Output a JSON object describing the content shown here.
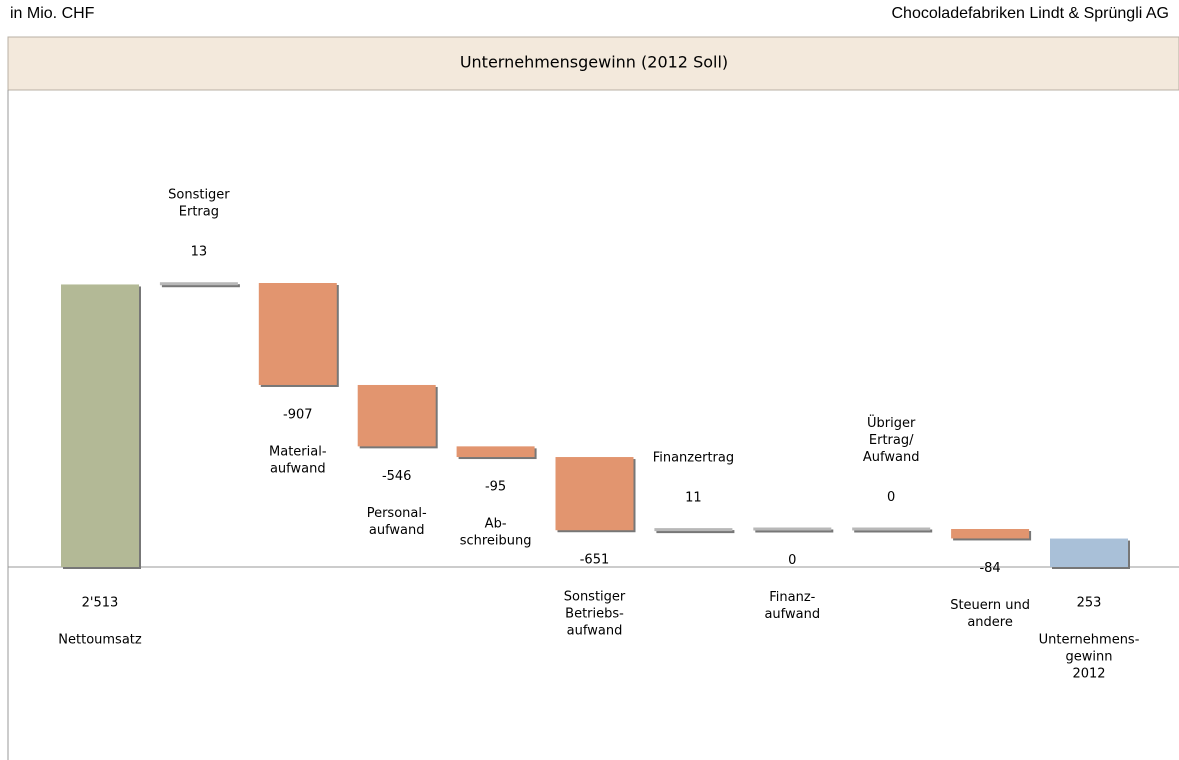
{
  "chart_data": {
    "type": "waterfall",
    "unit_note": "in Mio. CHF",
    "company": "Chocoladefabriken Lindt & Sprüngli AG",
    "title": "Unternehmensgewinn (2012 Soll)",
    "categories": [
      [
        "Nettoumsatz"
      ],
      [
        "Sonstiger",
        "Ertrag"
      ],
      [
        "Material-",
        "aufwand"
      ],
      [
        "Personal-",
        "aufwand"
      ],
      [
        "Ab-",
        "schreibung"
      ],
      [
        "Sonstiger",
        "Betriebs-",
        "aufwand"
      ],
      [
        "Finanzertrag"
      ],
      [
        "Finanz-",
        "aufwand"
      ],
      [
        "Übriger",
        "Ertrag/",
        "Aufwand"
      ],
      [
        "Steuern und",
        "andere"
      ],
      [
        "Unternehmens-",
        "gewinn",
        "2012"
      ]
    ],
    "values": [
      2513,
      13,
      -907,
      -546,
      -95,
      -651,
      11,
      0,
      0,
      -84,
      253
    ],
    "value_labels": [
      "2'513",
      "13",
      "-907",
      "-546",
      "-95",
      "-651",
      "11",
      "0",
      "0",
      "-84",
      "253"
    ],
    "kinds": [
      "total",
      "delta",
      "delta",
      "delta",
      "delta",
      "delta",
      "delta",
      "delta",
      "delta",
      "delta",
      "total"
    ],
    "colors": [
      "#b3b996",
      "#b8b8b8",
      "#e2956f",
      "#e2956f",
      "#e2956f",
      "#e2956f",
      "#b8b8b8",
      "#b8b8b8",
      "#b8b8b8",
      "#e2956f",
      "#a9c0d8"
    ]
  }
}
